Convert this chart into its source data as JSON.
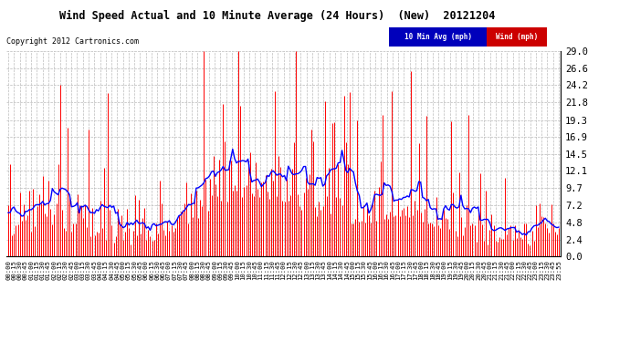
{
  "title": "Wind Speed Actual and 10 Minute Average (24 Hours)  (New)  20121204",
  "copyright": "Copyright 2012 Cartronics.com",
  "legend_blue_label": "10 Min Avg (mph)",
  "legend_red_label": "Wind (mph)",
  "ylim": [
    0.0,
    29.0
  ],
  "yticks": [
    0.0,
    2.4,
    4.8,
    7.2,
    9.7,
    12.1,
    14.5,
    16.9,
    19.3,
    21.8,
    24.2,
    26.6,
    29.0
  ],
  "bg_color": "#ffffff",
  "grid_color": "#bbbbbb",
  "wind_color": "#ff0000",
  "avg_color": "#0000ff",
  "dark_color": "#333333",
  "num_points": 288
}
